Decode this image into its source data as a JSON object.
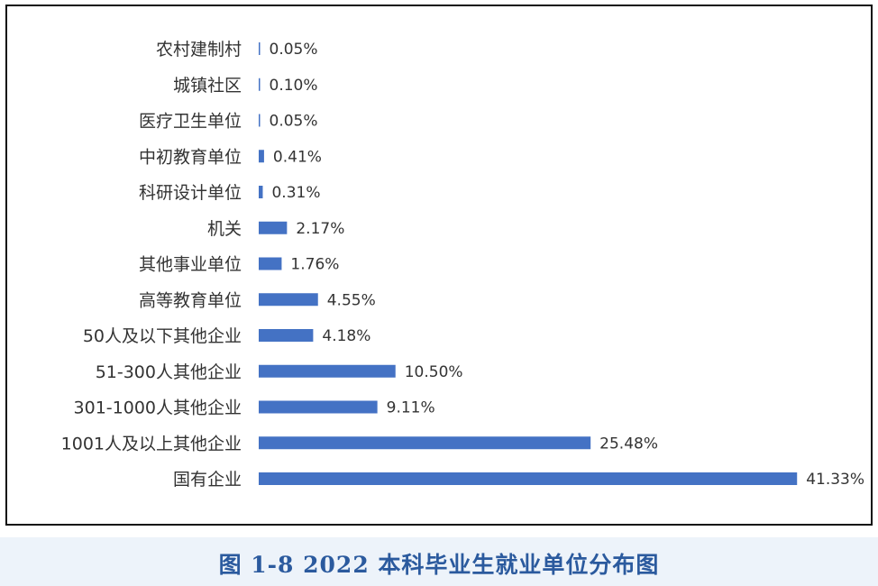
{
  "caption": "图 1-8    2022 本科毕业生就业单位分布图",
  "colors": {
    "bar": "#4472c4",
    "caption": "#2b5a9e"
  },
  "chart_data": {
    "type": "bar",
    "orientation": "horizontal",
    "title": "",
    "xlabel": "",
    "ylabel": "",
    "grid": false,
    "legend": "none",
    "categories": [
      "农村建制村",
      "城镇社区",
      "医疗卫生单位",
      "中初教育单位",
      "科研设计单位",
      "机关",
      "其他事业单位",
      "高等教育单位",
      "50人及以下其他企业",
      "51-300人其他企业",
      "301-1000人其他企业",
      "1001人及以上其他企业",
      "国有企业"
    ],
    "values": [
      0.05,
      0.1,
      0.05,
      0.41,
      0.31,
      2.17,
      1.76,
      4.55,
      4.18,
      10.5,
      9.11,
      25.48,
      41.33
    ],
    "value_labels": [
      "0.05%",
      "0.10%",
      "0.05%",
      "0.41%",
      "0.31%",
      "2.17%",
      "1.76%",
      "4.55%",
      "4.18%",
      "10.50%",
      "9.11%",
      "25.48%",
      "41.33%"
    ],
    "unit": "%"
  }
}
